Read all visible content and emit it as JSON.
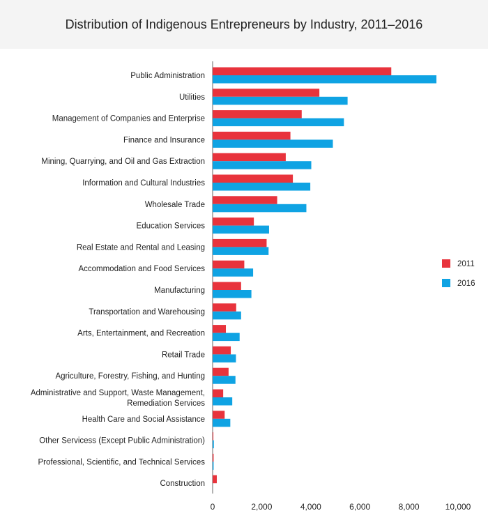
{
  "chart_data": {
    "type": "bar",
    "orientation": "horizontal",
    "title": "Distribution of Indigenous Entrepreneurs by Industry, 2011–2016",
    "categories": [
      "Public Administration",
      "Utilities",
      "Management of Companies and Enterprise",
      "Finance and Insurance",
      "Mining, Quarrying, and Oil and Gas Extraction",
      "Information and Cultural Industries",
      "Wholesale Trade",
      "Education Services",
      "Real Estate and Rental and Leasing",
      "Accommodation and Food Services",
      "Manufacturing",
      "Transportation and Warehousing",
      "Arts, Entertainment, and Recreation",
      "Retail Trade",
      "Agriculture, Forestry, Fishing, and Hunting",
      "Administrative and Support, Waste Management, Remediation Services",
      "Health Care and Social Assistance",
      "Other Servicess (Except Public Administration)",
      "Professional, Scientific, and Technical Services",
      "Construction"
    ],
    "series": [
      {
        "name": "2011",
        "color": "#e8333c",
        "values": [
          7280,
          4350,
          3630,
          3170,
          2980,
          3270,
          2630,
          1680,
          2200,
          1290,
          1160,
          960,
          540,
          740,
          650,
          430,
          490,
          30,
          40,
          170
        ]
      },
      {
        "name": "2016",
        "color": "#0fa3e3",
        "values": [
          9120,
          5500,
          5350,
          4900,
          4020,
          3980,
          3820,
          2300,
          2280,
          1650,
          1580,
          1160,
          1100,
          950,
          930,
          800,
          720,
          50,
          40,
          0
        ]
      }
    ],
    "xlim": [
      0,
      10000
    ],
    "xticks": [
      0,
      2000,
      4000,
      6000,
      8000,
      10000
    ],
    "xtick_labels": [
      "0",
      "2,000",
      "4,000",
      "6,000",
      "8,000",
      "10,000"
    ],
    "grid": false,
    "legend": "right"
  }
}
